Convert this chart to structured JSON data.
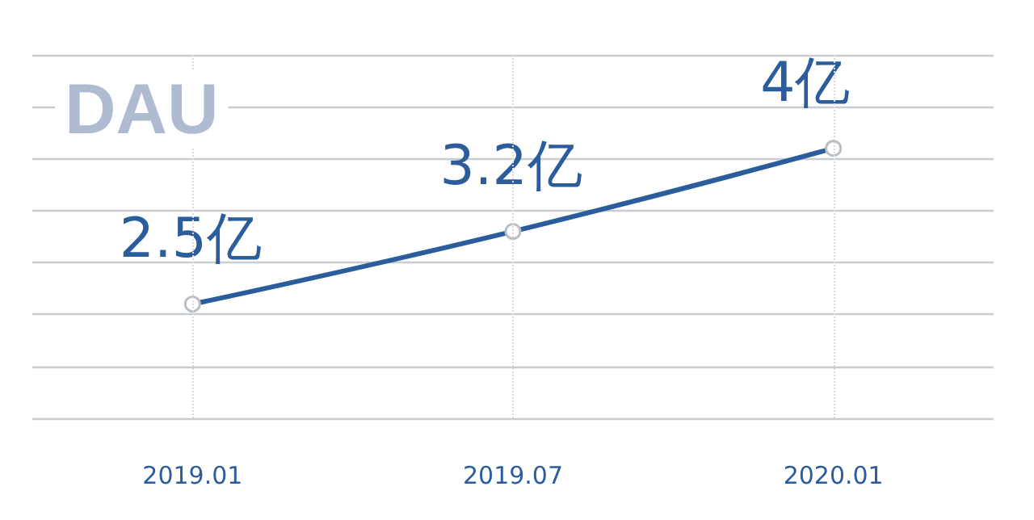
{
  "chart_data": {
    "type": "line",
    "categories": [
      "2019.01",
      "2019.07",
      "2020.01"
    ],
    "series": [
      {
        "color": "#2b5c9c",
        "values": [
          2.5,
          3.2,
          4
        ],
        "value_labels": [
          "2.5亿",
          "3.2亿",
          "4亿"
        ]
      }
    ],
    "ylim": [
      1.4,
      4.9
    ],
    "yticks": [
      {
        "value": 1.4,
        "label": null
      },
      {
        "value": 1.9,
        "label": null
      },
      {
        "value": 2.4,
        "label": null
      },
      {
        "value": 2.9,
        "label": null
      },
      {
        "value": 3.4,
        "label": null
      },
      {
        "value": 3.9,
        "label": null
      },
      {
        "value": 4.4,
        "label": null
      },
      {
        "value": 4.9,
        "label": null
      }
    ],
    "tick_labels": "x",
    "grid": true,
    "marker": "circle",
    "line_style": "solid",
    "annotations": [
      "DAU"
    ]
  }
}
